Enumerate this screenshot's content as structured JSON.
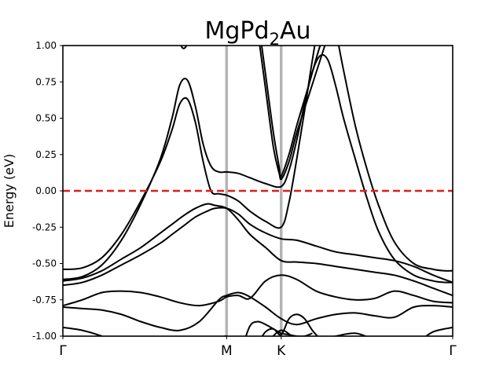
{
  "chart_data": {
    "type": "line",
    "title": {
      "main": "MgPd",
      "sub": "2",
      "tail": "Au"
    },
    "ylabel": "Energy (eV)",
    "xlabel": "",
    "ylim": [
      -1.0,
      1.0
    ],
    "xlim": [
      0,
      1
    ],
    "yticks": [
      "-1.00",
      "-0.75",
      "-0.50",
      "-0.25",
      "0.00",
      "0.25",
      "0.50",
      "0.75",
      "1.00"
    ],
    "ytick_values": [
      -1.0,
      -0.75,
      -0.5,
      -0.25,
      0.0,
      0.25,
      0.5,
      0.75,
      1.0
    ],
    "high_symmetry_points": [
      {
        "label": "Γ",
        "x": 0.0
      },
      {
        "label": "M",
        "x": 0.42
      },
      {
        "label": "K",
        "x": 0.56
      },
      {
        "label": "Γ",
        "x": 1.0
      }
    ],
    "fermi_level": 0.0,
    "grid": false,
    "colors": {
      "bands": "#000000",
      "fermi": "#e41a1c",
      "symmetry_lines": "#b3b3b3"
    },
    "series": [
      {
        "x": [
          0,
          0.05,
          0.1,
          0.15,
          0.2,
          0.25,
          0.28,
          0.31,
          0.34,
          0.37,
          0.39,
          0.42,
          0.45,
          0.48,
          0.52,
          0.56,
          0.6,
          0.65,
          0.7,
          0.75,
          0.8,
          0.85,
          0.9,
          0.95,
          1.0
        ],
        "values": [
          -0.62,
          -0.6,
          -0.55,
          -0.47,
          -0.39,
          -0.29,
          -0.23,
          -0.17,
          -0.12,
          -0.09,
          -0.1,
          -0.12,
          -0.2,
          -0.3,
          -0.39,
          -0.48,
          -0.49,
          -0.5,
          -0.52,
          -0.54,
          -0.56,
          -0.58,
          -0.62,
          -0.67,
          -0.72
        ]
      },
      {
        "x": [
          0,
          0.05,
          0.1,
          0.15,
          0.2,
          0.25,
          0.28,
          0.31,
          0.34,
          0.37,
          0.39,
          0.42,
          0.45,
          0.48,
          0.52,
          0.56,
          0.6,
          0.65,
          0.7,
          0.75,
          0.8,
          0.85,
          0.9,
          0.95,
          1.0
        ],
        "values": [
          -0.65,
          -0.63,
          -0.58,
          -0.51,
          -0.44,
          -0.36,
          -0.3,
          -0.24,
          -0.18,
          -0.14,
          -0.12,
          -0.12,
          -0.16,
          -0.23,
          -0.29,
          -0.33,
          -0.34,
          -0.38,
          -0.42,
          -0.44,
          -0.46,
          -0.48,
          -0.52,
          -0.58,
          -0.63
        ]
      },
      {
        "x": [
          0,
          0.05,
          0.1,
          0.15,
          0.2,
          0.25,
          0.28,
          0.3,
          0.32,
          0.34,
          0.36,
          0.38,
          0.4,
          0.42,
          0.45,
          0.48,
          0.52,
          0.56,
          0.58,
          0.6,
          0.62,
          0.64,
          0.66,
          0.68,
          0.7,
          0.72,
          0.75,
          0.78,
          0.81,
          0.85,
          0.9,
          0.95,
          0.98,
          1.0
        ],
        "values": [
          -0.54,
          -0.53,
          -0.46,
          -0.3,
          -0.07,
          0.2,
          0.42,
          0.6,
          0.63,
          0.47,
          0.2,
          0.0,
          -0.02,
          -0.03,
          -0.07,
          -0.14,
          -0.21,
          -0.25,
          -0.08,
          0.22,
          0.55,
          0.9,
          1.2,
          1.3,
          1.1,
          0.83,
          0.45,
          0.15,
          -0.1,
          -0.35,
          -0.5,
          -0.54,
          -0.55,
          -0.55
        ]
      },
      {
        "x": [
          0,
          0.05,
          0.1,
          0.15,
          0.2,
          0.25,
          0.28,
          0.3,
          0.32,
          0.34,
          0.36,
          0.38,
          0.4,
          0.42,
          0.45,
          0.48,
          0.52,
          0.56,
          0.58,
          0.6,
          0.62,
          0.64,
          0.66,
          0.68,
          0.7,
          0.72,
          0.75,
          0.78,
          0.81,
          0.85,
          0.9,
          0.95,
          0.98,
          1.0
        ],
        "values": [
          -0.61,
          -0.59,
          -0.51,
          -0.34,
          -0.09,
          0.22,
          0.5,
          0.73,
          0.76,
          0.58,
          0.32,
          0.17,
          0.13,
          0.13,
          0.12,
          0.09,
          0.05,
          0.03,
          0.14,
          0.35,
          0.6,
          0.82,
          0.93,
          0.9,
          0.72,
          0.5,
          0.22,
          -0.05,
          -0.28,
          -0.47,
          -0.58,
          -0.62,
          -0.63,
          -0.63
        ]
      },
      {
        "x": [
          0.5,
          0.52,
          0.54,
          0.555,
          0.56,
          0.58,
          0.6,
          0.63,
          0.66,
          0.69
        ],
        "values": [
          1.1,
          0.7,
          0.3,
          0.12,
          0.1,
          0.25,
          0.45,
          0.72,
          1.0,
          1.2
        ]
      },
      {
        "x": [
          0.5,
          0.52,
          0.54,
          0.555,
          0.56,
          0.58,
          0.6,
          0.63,
          0.66,
          0.69
        ],
        "values": [
          1.2,
          0.8,
          0.4,
          0.16,
          0.08,
          0.2,
          0.4,
          0.65,
          0.9,
          1.15
        ]
      },
      {
        "x": [
          0,
          0.05,
          0.1,
          0.15,
          0.2,
          0.25,
          0.3,
          0.35,
          0.4,
          0.42,
          0.45,
          0.48,
          0.52,
          0.56,
          0.6,
          0.65,
          0.7,
          0.75,
          0.8,
          0.85,
          0.9,
          0.95,
          1.0
        ],
        "values": [
          -0.79,
          -0.75,
          -0.7,
          -0.69,
          -0.7,
          -0.73,
          -0.77,
          -0.79,
          -0.76,
          -0.73,
          -0.72,
          -0.74,
          -0.62,
          -0.58,
          -0.61,
          -0.69,
          -0.73,
          -0.75,
          -0.74,
          -0.69,
          -0.72,
          -0.76,
          -0.77
        ]
      },
      {
        "x": [
          0,
          0.05,
          0.1,
          0.15,
          0.2,
          0.25,
          0.3,
          0.35,
          0.4,
          0.42,
          0.45,
          0.48,
          0.52,
          0.56,
          0.6,
          0.65,
          0.7,
          0.75,
          0.8,
          0.85,
          0.9,
          0.95,
          1.0
        ],
        "values": [
          -0.8,
          -0.81,
          -0.82,
          -0.85,
          -0.9,
          -0.94,
          -0.96,
          -0.9,
          -0.75,
          -0.72,
          -0.7,
          -0.73,
          -0.8,
          -0.88,
          -0.92,
          -0.88,
          -0.85,
          -0.84,
          -0.86,
          -0.87,
          -0.8,
          -0.79,
          -0.8
        ]
      },
      {
        "x": [
          0,
          0.05,
          0.1,
          0.15,
          0.2,
          0.25,
          0.3,
          0.35,
          0.4,
          0.42,
          0.45,
          0.48,
          0.52,
          0.56,
          0.6,
          0.65,
          0.7,
          0.75,
          0.8,
          0.85,
          0.9,
          0.95,
          1.0
        ],
        "values": [
          -0.94,
          -0.96,
          -1.0,
          -1.06,
          -1.1,
          -1.08,
          -1.05,
          -1.04,
          -1.02,
          -1.0,
          -1.05,
          -1.1,
          -1.05,
          -0.96,
          -1.02,
          -1.03,
          -1.0,
          -0.98,
          -1.02,
          -1.02,
          -1.05,
          -0.97,
          -0.94
        ]
      },
      {
        "x": [
          0.46,
          0.48,
          0.5,
          0.52,
          0.54,
          0.56,
          0.58,
          0.6,
          0.62,
          0.64
        ],
        "values": [
          -1.08,
          -0.93,
          -0.9,
          -0.92,
          -0.95,
          -0.98,
          -0.99,
          -1.0,
          -1.0,
          -0.98
        ]
      },
      {
        "x": [
          0.5,
          0.52,
          0.54,
          0.56,
          0.58,
          0.6,
          0.62,
          0.64,
          0.66
        ],
        "values": [
          -1.05,
          -0.97,
          -0.95,
          -0.99,
          -0.88,
          -0.85,
          -0.88,
          -0.96,
          -1.02
        ]
      },
      {
        "x": [
          0.3,
          0.305,
          0.31,
          0.315,
          0.32
        ],
        "values": [
          1.02,
          0.99,
          0.98,
          0.99,
          1.02
        ]
      }
    ]
  }
}
